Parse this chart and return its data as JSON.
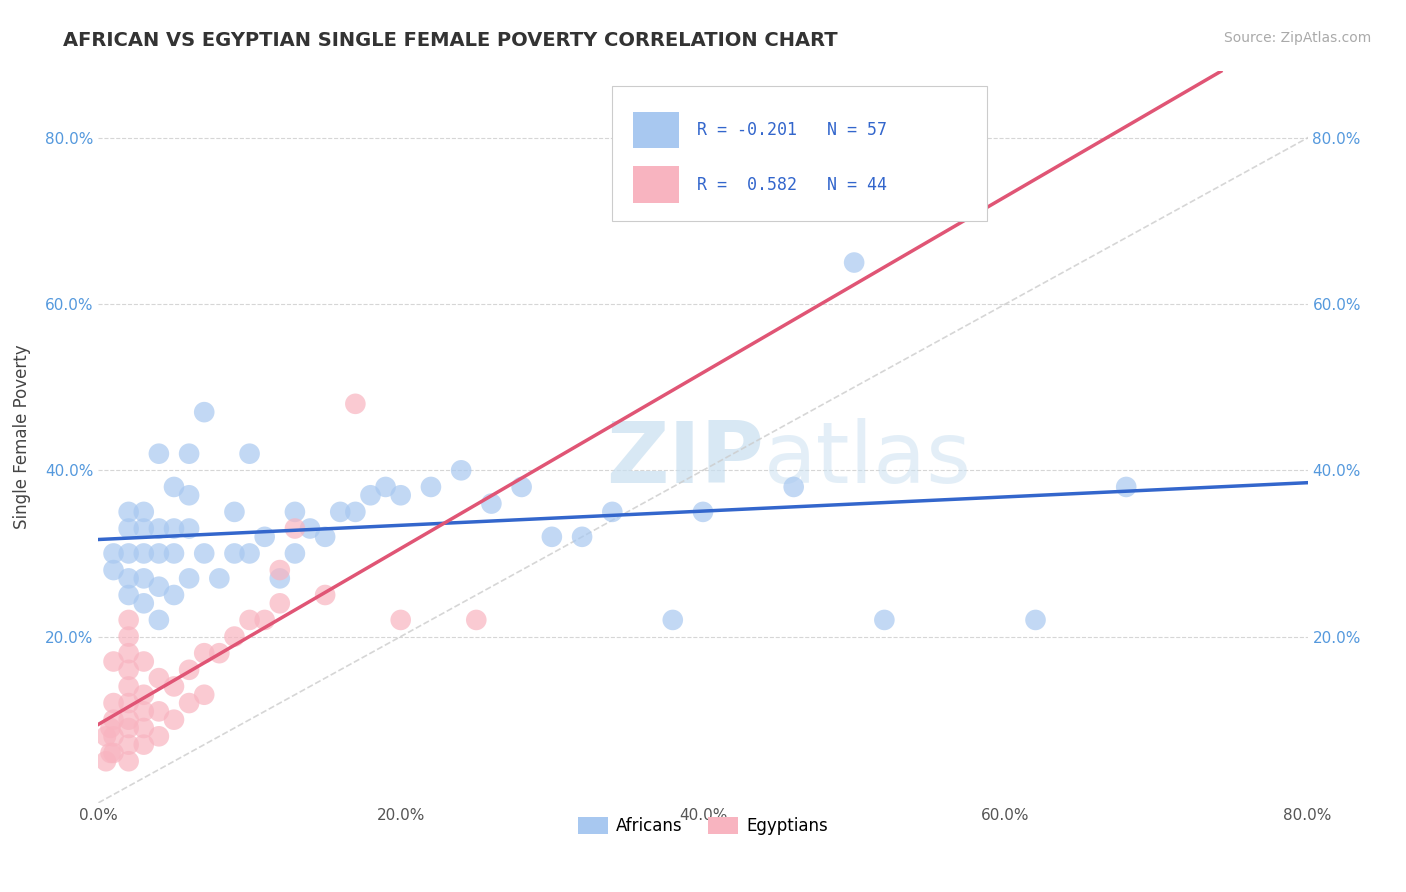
{
  "title": "AFRICAN VS EGYPTIAN SINGLE FEMALE POVERTY CORRELATION CHART",
  "source": "Source: ZipAtlas.com",
  "ylabel": "Single Female Poverty",
  "xlim": [
    0.0,
    0.8
  ],
  "ylim": [
    0.0,
    0.88
  ],
  "xtick_labels": [
    "0.0%",
    "20.0%",
    "40.0%",
    "60.0%",
    "80.0%"
  ],
  "xtick_vals": [
    0.0,
    0.2,
    0.4,
    0.6,
    0.8
  ],
  "ytick_labels": [
    "20.0%",
    "40.0%",
    "60.0%",
    "80.0%"
  ],
  "ytick_vals": [
    0.2,
    0.4,
    0.6,
    0.8
  ],
  "african_R": "-0.201",
  "african_N": "57",
  "egyptian_R": "0.582",
  "egyptian_N": "44",
  "african_color": "#A8C8F0",
  "egyptian_color": "#F8B4C0",
  "african_line_color": "#3366CC",
  "egyptian_line_color": "#E05575",
  "trendline_dash_color": "#CCCCCC",
  "watermark_zip": "ZIP",
  "watermark_atlas": "atlas",
  "africans_x": [
    0.01,
    0.01,
    0.02,
    0.02,
    0.02,
    0.02,
    0.02,
    0.03,
    0.03,
    0.03,
    0.03,
    0.03,
    0.04,
    0.04,
    0.04,
    0.04,
    0.04,
    0.05,
    0.05,
    0.05,
    0.05,
    0.06,
    0.06,
    0.06,
    0.06,
    0.07,
    0.07,
    0.08,
    0.09,
    0.09,
    0.1,
    0.1,
    0.11,
    0.12,
    0.13,
    0.13,
    0.14,
    0.15,
    0.16,
    0.17,
    0.18,
    0.19,
    0.2,
    0.22,
    0.24,
    0.26,
    0.28,
    0.3,
    0.32,
    0.34,
    0.38,
    0.4,
    0.46,
    0.5,
    0.52,
    0.62,
    0.68
  ],
  "africans_y": [
    0.28,
    0.3,
    0.25,
    0.27,
    0.3,
    0.33,
    0.35,
    0.24,
    0.27,
    0.3,
    0.33,
    0.35,
    0.22,
    0.26,
    0.3,
    0.33,
    0.42,
    0.25,
    0.3,
    0.33,
    0.38,
    0.27,
    0.33,
    0.37,
    0.42,
    0.3,
    0.47,
    0.27,
    0.3,
    0.35,
    0.3,
    0.42,
    0.32,
    0.27,
    0.3,
    0.35,
    0.33,
    0.32,
    0.35,
    0.35,
    0.37,
    0.38,
    0.37,
    0.38,
    0.4,
    0.36,
    0.38,
    0.32,
    0.32,
    0.35,
    0.22,
    0.35,
    0.38,
    0.65,
    0.22,
    0.22,
    0.38
  ],
  "egyptians_x": [
    0.005,
    0.005,
    0.008,
    0.008,
    0.01,
    0.01,
    0.01,
    0.01,
    0.01,
    0.02,
    0.02,
    0.02,
    0.02,
    0.02,
    0.02,
    0.02,
    0.02,
    0.02,
    0.02,
    0.03,
    0.03,
    0.03,
    0.03,
    0.03,
    0.04,
    0.04,
    0.04,
    0.05,
    0.05,
    0.06,
    0.06,
    0.07,
    0.07,
    0.08,
    0.09,
    0.1,
    0.11,
    0.12,
    0.12,
    0.13,
    0.15,
    0.17,
    0.2,
    0.25
  ],
  "egyptians_y": [
    0.05,
    0.08,
    0.06,
    0.09,
    0.06,
    0.08,
    0.1,
    0.12,
    0.17,
    0.05,
    0.07,
    0.09,
    0.1,
    0.12,
    0.14,
    0.16,
    0.18,
    0.2,
    0.22,
    0.07,
    0.09,
    0.11,
    0.13,
    0.17,
    0.08,
    0.11,
    0.15,
    0.1,
    0.14,
    0.12,
    0.16,
    0.13,
    0.18,
    0.18,
    0.2,
    0.22,
    0.22,
    0.24,
    0.28,
    0.33,
    0.25,
    0.48,
    0.22,
    0.22
  ]
}
